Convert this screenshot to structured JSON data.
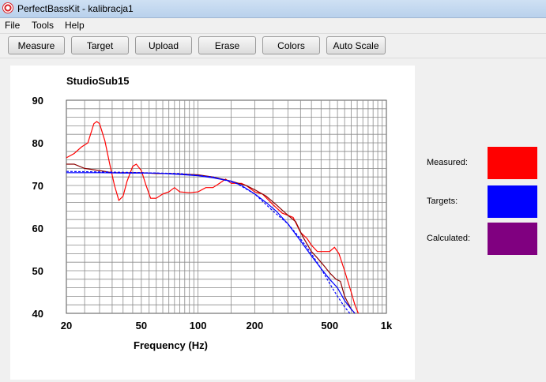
{
  "window": {
    "title": "PerfectBassKit - kalibracja1"
  },
  "menu": [
    "File",
    "Tools",
    "Help"
  ],
  "toolbar": {
    "measure_label": "Measure",
    "target_label": "Target",
    "upload_label": "Upload",
    "erase_label": "Erase",
    "colors_label": "Colors",
    "autoscale_label": "Auto Scale"
  },
  "legend": [
    {
      "label": "Measured:",
      "color": "#ff0000"
    },
    {
      "label": "Targets:",
      "color": "#0000ff"
    },
    {
      "label": "Calculated:",
      "color": "#800080"
    }
  ],
  "chart_data": {
    "type": "line",
    "title": "StudioSub15",
    "xlabel": "Frequency (Hz)",
    "ylabel": "",
    "x_scale": "log",
    "xlim": [
      20,
      1000
    ],
    "ylim": [
      40,
      90
    ],
    "grid": true,
    "x_tick_labels": [
      {
        "value": 20,
        "label": "20"
      },
      {
        "value": 50,
        "label": "50"
      },
      {
        "value": 100,
        "label": "100"
      },
      {
        "value": 200,
        "label": "200"
      },
      {
        "value": 500,
        "label": "500"
      },
      {
        "value": 1000,
        "label": "1k"
      }
    ],
    "y_tick_labels": [
      {
        "value": 90,
        "label": "90"
      },
      {
        "value": 80,
        "label": "80"
      },
      {
        "value": 70,
        "label": "70"
      },
      {
        "value": 60,
        "label": "60"
      },
      {
        "value": 50,
        "label": "50"
      },
      {
        "value": 40,
        "label": "40"
      }
    ],
    "series": [
      {
        "color": "#ff0000",
        "style": "solid",
        "points": [
          [
            20,
            76.5
          ],
          [
            22,
            77.5
          ],
          [
            24,
            79
          ],
          [
            26,
            80
          ],
          [
            28,
            84.5
          ],
          [
            29,
            85
          ],
          [
            30,
            84.5
          ],
          [
            32,
            80.5
          ],
          [
            34,
            75
          ],
          [
            36,
            70
          ],
          [
            38,
            66.5
          ],
          [
            40,
            67.5
          ],
          [
            42,
            71
          ],
          [
            45,
            74.5
          ],
          [
            47,
            75
          ],
          [
            50,
            73.5
          ],
          [
            53,
            70
          ],
          [
            56,
            67
          ],
          [
            60,
            67
          ],
          [
            65,
            68
          ],
          [
            70,
            68.5
          ],
          [
            75,
            69.5
          ],
          [
            80,
            68.5
          ],
          [
            90,
            68.3
          ],
          [
            100,
            68.5
          ],
          [
            110,
            69.5
          ],
          [
            120,
            69.5
          ],
          [
            130,
            70.5
          ],
          [
            140,
            71.5
          ],
          [
            150,
            70.5
          ],
          [
            160,
            70.5
          ],
          [
            170,
            70.5
          ],
          [
            180,
            70
          ],
          [
            200,
            68.5
          ],
          [
            220,
            68
          ],
          [
            250,
            65.5
          ],
          [
            280,
            63.5
          ],
          [
            300,
            63
          ],
          [
            320,
            62.5
          ],
          [
            350,
            59
          ],
          [
            380,
            57.5
          ],
          [
            400,
            56
          ],
          [
            430,
            54.5
          ],
          [
            460,
            54.5
          ],
          [
            500,
            54.5
          ],
          [
            530,
            55.5
          ],
          [
            560,
            54
          ],
          [
            600,
            50
          ],
          [
            650,
            45
          ],
          [
            680,
            42
          ],
          [
            710,
            40
          ]
        ]
      },
      {
        "color": "#8b0000",
        "style": "solid",
        "points": [
          [
            20,
            75
          ],
          [
            22,
            75
          ],
          [
            25,
            74
          ],
          [
            30,
            73.5
          ],
          [
            35,
            73
          ],
          [
            40,
            73
          ],
          [
            50,
            73
          ],
          [
            60,
            72.8
          ],
          [
            70,
            72.8
          ],
          [
            80,
            72.7
          ],
          [
            100,
            72.5
          ],
          [
            120,
            72
          ],
          [
            150,
            71
          ],
          [
            180,
            70
          ],
          [
            200,
            69
          ],
          [
            230,
            67.5
          ],
          [
            260,
            65.5
          ],
          [
            300,
            63
          ],
          [
            330,
            61.5
          ],
          [
            360,
            58
          ],
          [
            400,
            54.5
          ],
          [
            430,
            53
          ],
          [
            470,
            51
          ],
          [
            500,
            49.5
          ],
          [
            540,
            48
          ],
          [
            570,
            47.5
          ],
          [
            600,
            44
          ],
          [
            650,
            41
          ],
          [
            680,
            40
          ]
        ]
      },
      {
        "color": "#0000ff",
        "style": "solid",
        "points": [
          [
            20,
            73
          ],
          [
            30,
            73
          ],
          [
            40,
            72.9
          ],
          [
            60,
            72.9
          ],
          [
            80,
            72.6
          ],
          [
            100,
            72.3
          ],
          [
            120,
            71.8
          ],
          [
            150,
            71
          ],
          [
            170,
            70
          ],
          [
            200,
            68
          ],
          [
            230,
            66
          ],
          [
            260,
            64
          ],
          [
            300,
            61
          ],
          [
            350,
            57
          ],
          [
            400,
            53.5
          ],
          [
            450,
            50.5
          ],
          [
            500,
            48
          ],
          [
            550,
            46
          ],
          [
            600,
            43
          ],
          [
            650,
            41
          ],
          [
            680,
            40
          ]
        ]
      },
      {
        "color": "#0000ff",
        "style": "dashed",
        "points": [
          [
            20,
            73.3
          ],
          [
            40,
            73.1
          ],
          [
            80,
            72.8
          ],
          [
            120,
            72
          ],
          [
            160,
            70.5
          ],
          [
            200,
            68
          ],
          [
            250,
            64
          ],
          [
            300,
            61
          ],
          [
            350,
            57.5
          ],
          [
            400,
            54
          ],
          [
            450,
            50.5
          ],
          [
            500,
            47
          ],
          [
            550,
            44
          ],
          [
            600,
            41.5
          ],
          [
            640,
            40
          ]
        ]
      }
    ]
  }
}
